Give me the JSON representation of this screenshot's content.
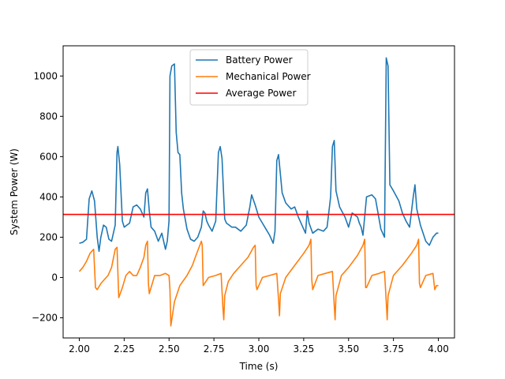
{
  "chart_data": {
    "type": "line",
    "title": "",
    "xlabel": "Time (s)",
    "ylabel": "System Power (W)",
    "xlim": [
      1.91,
      4.09
    ],
    "ylim": [
      -300,
      1150
    ],
    "xticks": [
      2.0,
      2.25,
      2.5,
      2.75,
      3.0,
      3.25,
      3.5,
      3.75,
      4.0
    ],
    "xtick_labels": [
      "2.00",
      "2.25",
      "2.50",
      "2.75",
      "3.00",
      "3.25",
      "3.50",
      "3.75",
      "4.00"
    ],
    "yticks": [
      -200,
      0,
      200,
      400,
      600,
      800,
      1000
    ],
    "ytick_labels": [
      "−200",
      "0",
      "200",
      "400",
      "600",
      "800",
      "1000"
    ],
    "grid": false,
    "legend_position": "top-center",
    "series": [
      {
        "name": "Battery Power",
        "color": "#1f77b4",
        "x": [
          2.0,
          2.02,
          2.04,
          2.055,
          2.07,
          2.085,
          2.1,
          2.11,
          2.12,
          2.135,
          2.15,
          2.165,
          2.18,
          2.2,
          2.21,
          2.215,
          2.225,
          2.24,
          2.25,
          2.265,
          2.28,
          2.3,
          2.32,
          2.34,
          2.36,
          2.37,
          2.38,
          2.39,
          2.4,
          2.42,
          2.44,
          2.46,
          2.48,
          2.49,
          2.5,
          2.505,
          2.515,
          2.53,
          2.54,
          2.55,
          2.56,
          2.57,
          2.58,
          2.6,
          2.62,
          2.64,
          2.66,
          2.68,
          2.69,
          2.7,
          2.71,
          2.72,
          2.74,
          2.76,
          2.775,
          2.785,
          2.795,
          2.81,
          2.82,
          2.835,
          2.85,
          2.87,
          2.9,
          2.93,
          2.95,
          2.96,
          2.98,
          3.0,
          3.02,
          3.04,
          3.06,
          3.08,
          3.09,
          3.1,
          3.11,
          3.13,
          3.15,
          3.18,
          3.2,
          3.22,
          3.25,
          3.26,
          3.27,
          3.28,
          3.3,
          3.33,
          3.36,
          3.38,
          3.4,
          3.41,
          3.42,
          3.43,
          3.45,
          3.48,
          3.5,
          3.52,
          3.55,
          3.56,
          3.57,
          3.58,
          3.6,
          3.63,
          3.65,
          3.68,
          3.7,
          3.71,
          3.72,
          3.73,
          3.75,
          3.78,
          3.8,
          3.82,
          3.84,
          3.86,
          3.87,
          3.88,
          3.9,
          3.93,
          3.95,
          3.97,
          3.99,
          4.0
        ],
        "y": [
          170,
          175,
          190,
          390,
          430,
          380,
          200,
          130,
          200,
          260,
          250,
          190,
          180,
          260,
          620,
          650,
          560,
          280,
          250,
          260,
          270,
          350,
          360,
          340,
          300,
          420,
          440,
          330,
          250,
          230,
          180,
          220,
          140,
          180,
          280,
          1000,
          1050,
          1060,
          720,
          620,
          610,
          420,
          340,
          240,
          190,
          180,
          200,
          250,
          330,
          320,
          280,
          260,
          230,
          280,
          620,
          650,
          590,
          290,
          270,
          260,
          250,
          250,
          230,
          260,
          350,
          410,
          360,
          300,
          270,
          240,
          210,
          170,
          230,
          580,
          610,
          420,
          370,
          340,
          350,
          300,
          240,
          220,
          330,
          270,
          220,
          240,
          230,
          250,
          400,
          650,
          680,
          430,
          350,
          300,
          250,
          320,
          300,
          270,
          250,
          210,
          400,
          410,
          390,
          240,
          200,
          1090,
          1050,
          460,
          430,
          380,
          320,
          280,
          250,
          400,
          460,
          340,
          260,
          180,
          160,
          200,
          220,
          220
        ]
      },
      {
        "name": "Mechanical Power",
        "color": "#ff7f0e",
        "x": [
          2.0,
          2.02,
          2.04,
          2.06,
          2.08,
          2.085,
          2.09,
          2.1,
          2.12,
          2.14,
          2.16,
          2.18,
          2.2,
          2.21,
          2.22,
          2.24,
          2.26,
          2.28,
          2.3,
          2.32,
          2.34,
          2.36,
          2.37,
          2.38,
          2.385,
          2.39,
          2.42,
          2.45,
          2.48,
          2.5,
          2.505,
          2.51,
          2.53,
          2.56,
          2.6,
          2.63,
          2.65,
          2.68,
          2.685,
          2.69,
          2.72,
          2.76,
          2.79,
          2.8,
          2.805,
          2.81,
          2.83,
          2.86,
          2.9,
          2.94,
          2.97,
          2.98,
          2.985,
          2.99,
          3.02,
          3.06,
          3.1,
          3.11,
          3.115,
          3.12,
          3.15,
          3.2,
          3.25,
          3.28,
          3.29,
          3.295,
          3.3,
          3.33,
          3.37,
          3.41,
          3.42,
          3.425,
          3.43,
          3.46,
          3.5,
          3.55,
          3.58,
          3.59,
          3.595,
          3.6,
          3.63,
          3.67,
          3.7,
          3.71,
          3.715,
          3.72,
          3.75,
          3.8,
          3.85,
          3.88,
          3.89,
          3.895,
          3.9,
          3.93,
          3.97,
          3.98,
          3.99,
          4.0
        ],
        "y": [
          30,
          50,
          80,
          120,
          140,
          50,
          -50,
          -60,
          -30,
          -10,
          10,
          50,
          140,
          150,
          -100,
          -50,
          10,
          30,
          10,
          10,
          50,
          100,
          160,
          180,
          -30,
          -80,
          10,
          10,
          20,
          10,
          -60,
          -240,
          -120,
          -40,
          10,
          60,
          110,
          180,
          160,
          -40,
          0,
          10,
          20,
          -150,
          -210,
          -90,
          -20,
          20,
          60,
          100,
          150,
          160,
          -40,
          -60,
          0,
          10,
          20,
          -110,
          -190,
          -80,
          0,
          60,
          120,
          160,
          190,
          -10,
          -60,
          10,
          20,
          30,
          -140,
          -210,
          -90,
          10,
          50,
          110,
          160,
          190,
          -50,
          -50,
          10,
          20,
          30,
          -120,
          -210,
          -90,
          10,
          60,
          120,
          160,
          190,
          -30,
          -50,
          10,
          20,
          -60,
          -40,
          -40
        ]
      },
      {
        "name": "Average Power",
        "color": "#ff0000",
        "type": "hline",
        "y": 313
      }
    ]
  }
}
